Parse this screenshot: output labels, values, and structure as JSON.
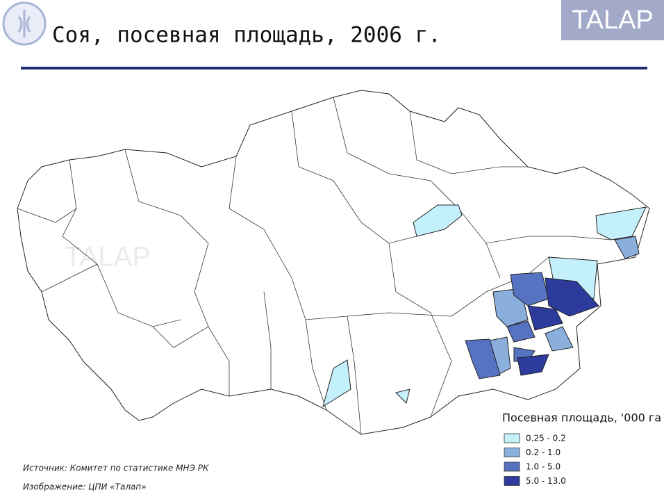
{
  "header": {
    "title": "Соя, посевная площадь, 2006 г.",
    "logo_text": "TALAP"
  },
  "map": {
    "watermark": "TALAP",
    "legend": {
      "title": "Посевная площадь, '000 га",
      "items": [
        {
          "label": "0.25 - 0.2",
          "color": "#c4f0fb"
        },
        {
          "label": "0.2 - 1.0",
          "color": "#8aafdc"
        },
        {
          "label": "1.0 - 5.0",
          "color": "#5673c2"
        },
        {
          "label": "5.0 - 13.0",
          "color": "#2d3b9c"
        }
      ]
    }
  },
  "footer": {
    "source": "Источник: Комитет по статистике МНЭ РК",
    "image_credit": "Изображение: ЦПИ «Талап»"
  }
}
